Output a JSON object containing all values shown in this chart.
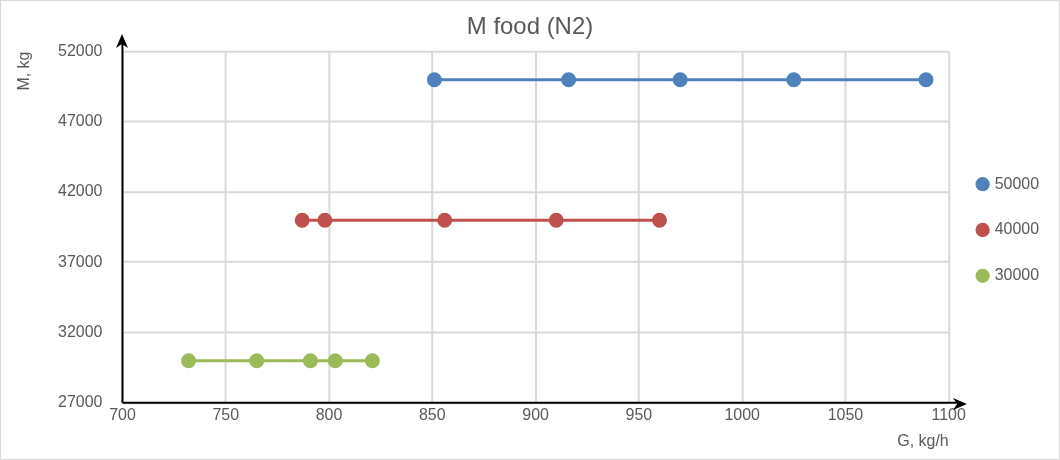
{
  "chart_data": {
    "type": "line",
    "title": "M food (N2)",
    "xlabel": "G, kg/h",
    "ylabel": "M, kg",
    "xlim": [
      700,
      1100
    ],
    "xticks": [
      700,
      750,
      800,
      850,
      900,
      950,
      1000,
      1050,
      1100
    ],
    "ylim": [
      27000,
      52000
    ],
    "yticks": [
      27000,
      32000,
      37000,
      42000,
      47000,
      52000
    ],
    "grid": true,
    "legend": "right",
    "marker": "circle",
    "line_style": "solid",
    "series": [
      {
        "name": "50000",
        "color": "#4f81bd",
        "x": [
          851,
          916,
          970,
          1025,
          1089
        ],
        "values": [
          50000,
          50000,
          50000,
          50000,
          50000
        ]
      },
      {
        "name": "40000",
        "color": "#c0504d",
        "x": [
          787,
          798,
          856,
          910,
          960
        ],
        "values": [
          40000,
          40000,
          40000,
          40000,
          40000
        ]
      },
      {
        "name": "30000",
        "color": "#9bbb59",
        "x": [
          732,
          765,
          791,
          803,
          821
        ],
        "values": [
          30000,
          30000,
          30000,
          30000,
          30000
        ]
      }
    ]
  }
}
